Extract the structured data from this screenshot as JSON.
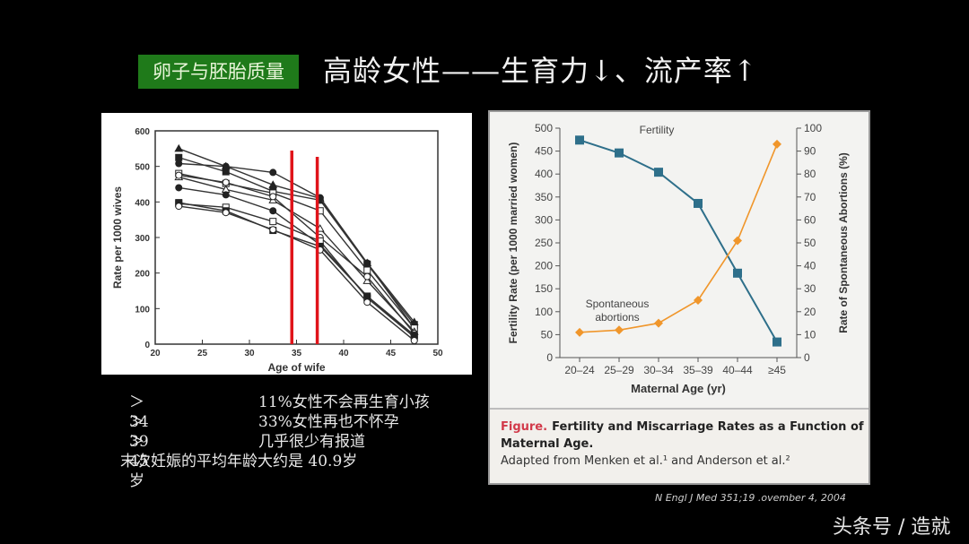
{
  "header": {
    "badge": "卵子与胚胎质量",
    "title": "高龄女性——生育力↓、流产率↑"
  },
  "notes": [
    {
      "age": "＞34",
      "text": "11%女性不会再生育小孩"
    },
    {
      "age": "＞39",
      "text": "33%女性再也不怀孕"
    },
    {
      "age": "＞45岁",
      "text": "几乎很少有报道"
    }
  ],
  "notes_summary": "末次妊娠的平均年龄大约是 40.9岁",
  "citation": "N Engl J Med 351;19 .ovember 4, 2004",
  "watermark": "头条号 / 造就",
  "caption": {
    "figure_label": "Figure.",
    "figure_title": "Fertility and Miscarriage Rates as a Function of Maternal Age.",
    "source": "Adapted from Menken et al.¹ and Anderson et al.²"
  },
  "colors": {
    "badge_bg": "#1f7a1a",
    "red_marker": "#e0141a",
    "fertility": "#2e6f8a",
    "abortions": "#f0962b",
    "caption_figure": "#d23a4a"
  },
  "chart_data": [
    {
      "type": "line",
      "title": "",
      "xlabel": "Age of wife",
      "ylabel": "Rate per 1000 wives",
      "xlim": [
        20,
        50
      ],
      "ylim": [
        0,
        600
      ],
      "xticks": [
        20,
        25,
        30,
        35,
        40,
        45,
        50
      ],
      "yticks": [
        0,
        100,
        200,
        300,
        400,
        500,
        600
      ],
      "x": [
        22.5,
        27.5,
        32.5,
        37.5,
        42.5,
        47.5
      ],
      "series": [
        {
          "name": "s1",
          "marker": "filled-triangle",
          "values": [
            550,
            500,
            448,
            410,
            228,
            62
          ]
        },
        {
          "name": "s2",
          "marker": "filled-square",
          "values": [
            525,
            485,
            430,
            405,
            225,
            55
          ]
        },
        {
          "name": "s3",
          "marker": "filled-circle",
          "values": [
            508,
            500,
            483,
            412,
            228,
            45
          ]
        },
        {
          "name": "s4",
          "marker": "open-square",
          "values": [
            480,
            452,
            425,
            375,
            208,
            45
          ]
        },
        {
          "name": "s5",
          "marker": "open-triangle",
          "values": [
            470,
            435,
            405,
            325,
            178,
            35
          ]
        },
        {
          "name": "s6",
          "marker": "open-circle",
          "values": [
            475,
            455,
            415,
            300,
            190,
            30
          ]
        },
        {
          "name": "s7",
          "marker": "filled-circle",
          "values": [
            440,
            420,
            375,
            280,
            135,
            20
          ]
        },
        {
          "name": "s8",
          "marker": "open-square",
          "values": [
            395,
            385,
            345,
            290,
            130,
            20
          ]
        },
        {
          "name": "s9",
          "marker": "filled-square",
          "values": [
            398,
            375,
            320,
            275,
            135,
            25
          ]
        },
        {
          "name": "s10",
          "marker": "open-circle",
          "values": [
            388,
            370,
            322,
            265,
            118,
            10
          ]
        }
      ],
      "annotations": [
        {
          "type": "vertical-line",
          "x": 34.5,
          "color": "#e0141a"
        },
        {
          "type": "vertical-line",
          "x": 37.2,
          "color": "#e0141a"
        }
      ],
      "grid": false,
      "legend": "none"
    },
    {
      "type": "line",
      "title": "",
      "xlabel": "Maternal Age (yr)",
      "ylabel": "Fertility Rate (per 1000 married women)",
      "ylabel_right": "Rate of Spontaneous Abortions (%)",
      "categories": [
        "20–24",
        "25–29",
        "30–34",
        "35–39",
        "40–44",
        "≥45"
      ],
      "ylim": [
        0,
        500
      ],
      "ylim_right": [
        0,
        100
      ],
      "yticks": [
        0,
        50,
        100,
        150,
        200,
        250,
        300,
        350,
        400,
        450,
        500
      ],
      "yticks_right": [
        0,
        10,
        20,
        30,
        40,
        50,
        60,
        70,
        80,
        90,
        100
      ],
      "series": [
        {
          "name": "Fertility",
          "axis": "left",
          "marker": "square",
          "color": "#2e6f8a",
          "values": [
            474,
            446,
            404,
            336,
            184,
            34
          ]
        },
        {
          "name": "Spontaneous abortions",
          "axis": "right",
          "marker": "diamond",
          "color": "#f0962b",
          "values": [
            11,
            12,
            15,
            25,
            51,
            93
          ]
        }
      ],
      "annotations": [
        {
          "text": "Fertility",
          "near": "top"
        },
        {
          "text": "Spontaneous abortions",
          "near": "lower-left"
        }
      ],
      "grid": false,
      "legend": "inline-labels"
    }
  ]
}
